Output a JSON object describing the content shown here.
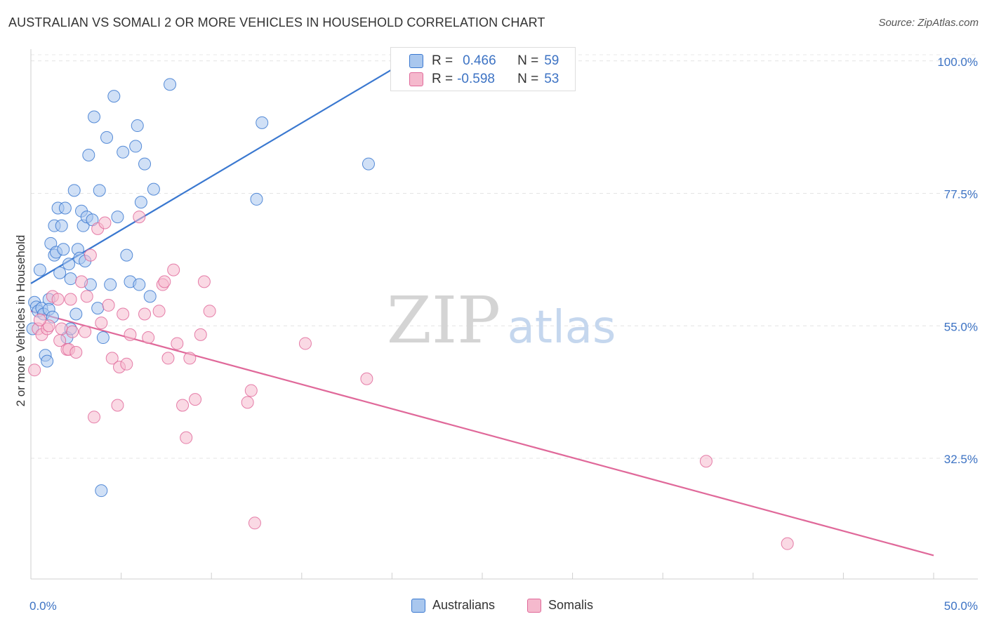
{
  "header": {
    "title": "AUSTRALIAN VS SOMALI 2 OR MORE VEHICLES IN HOUSEHOLD CORRELATION CHART",
    "source": "Source: ZipAtlas.com"
  },
  "watermark": {
    "zip": "ZIP",
    "atlas": "atlas"
  },
  "colors": {
    "blue": "#3a78d0",
    "blue_fill": "#a9c7ee",
    "pink": "#e0699a",
    "pink_fill": "#f5b9cd",
    "tick_text": "#3d73c4"
  },
  "legend": {
    "r_label": "R =",
    "n_label": "N =",
    "rows": [
      {
        "r": "0.466",
        "n": "59"
      },
      {
        "r": "-0.598",
        "n": "53"
      }
    ]
  },
  "chart_data": {
    "type": "scatter",
    "title": "AUSTRALIAN VS SOMALI 2 OR MORE VEHICLES IN HOUSEHOLD CORRELATION CHART",
    "xlabel": "",
    "ylabel": "2 or more Vehicles in Household",
    "xlim": [
      0,
      50
    ],
    "ylim": [
      12,
      102
    ],
    "x_tick_labels": [
      "0.0%",
      "50.0%"
    ],
    "y_ticks": [
      32.5,
      55.0,
      77.5,
      100.0
    ],
    "y_tick_labels": [
      "32.5%",
      "55.0%",
      "77.5%",
      "100.0%"
    ],
    "grid": true,
    "legend_position": "top-center",
    "series": [
      {
        "name": "Australians",
        "r": 0.466,
        "n": 59,
        "trend": {
          "x": [
            0.0,
            20.8
          ],
          "y": [
            62.2,
            100.0
          ]
        },
        "points": [
          [
            0.1,
            54.5
          ],
          [
            0.2,
            59.0
          ],
          [
            0.3,
            58.2
          ],
          [
            0.4,
            57.5
          ],
          [
            0.5,
            64.5
          ],
          [
            0.6,
            58.0
          ],
          [
            0.7,
            57.0
          ],
          [
            0.8,
            50.0
          ],
          [
            0.9,
            49.0
          ],
          [
            1.0,
            59.5
          ],
          [
            1.0,
            57.8
          ],
          [
            1.1,
            69.0
          ],
          [
            1.2,
            56.5
          ],
          [
            1.3,
            67.0
          ],
          [
            1.3,
            72.0
          ],
          [
            1.4,
            67.5
          ],
          [
            1.5,
            75.0
          ],
          [
            1.6,
            64.0
          ],
          [
            1.7,
            72.0
          ],
          [
            1.8,
            68.0
          ],
          [
            1.9,
            75.0
          ],
          [
            2.0,
            53.0
          ],
          [
            2.1,
            65.5
          ],
          [
            2.2,
            54.5
          ],
          [
            2.2,
            63.0
          ],
          [
            2.4,
            78.0
          ],
          [
            2.5,
            57.0
          ],
          [
            2.6,
            68.0
          ],
          [
            2.7,
            66.5
          ],
          [
            2.8,
            74.5
          ],
          [
            2.9,
            72.0
          ],
          [
            3.0,
            66.0
          ],
          [
            3.1,
            73.5
          ],
          [
            3.2,
            84.0
          ],
          [
            3.3,
            62.0
          ],
          [
            3.4,
            73.0
          ],
          [
            3.5,
            90.5
          ],
          [
            3.7,
            58.0
          ],
          [
            3.8,
            78.0
          ],
          [
            3.9,
            27.0
          ],
          [
            4.0,
            53.0
          ],
          [
            4.2,
            87.0
          ],
          [
            4.4,
            62.0
          ],
          [
            4.6,
            94.0
          ],
          [
            4.8,
            73.5
          ],
          [
            5.1,
            84.5
          ],
          [
            5.3,
            67.0
          ],
          [
            5.5,
            62.5
          ],
          [
            5.8,
            85.5
          ],
          [
            5.9,
            89.0
          ],
          [
            6.0,
            62.0
          ],
          [
            6.1,
            76.0
          ],
          [
            6.3,
            82.5
          ],
          [
            6.6,
            60.0
          ],
          [
            6.8,
            78.2
          ],
          [
            7.7,
            96.0
          ],
          [
            12.5,
            76.5
          ],
          [
            12.8,
            89.5
          ],
          [
            18.7,
            82.5
          ]
        ]
      },
      {
        "name": "Somalis",
        "r": -0.598,
        "n": 53,
        "trend": {
          "x": [
            0.0,
            50.0
          ],
          "y": [
            57.5,
            16.0
          ]
        },
        "points": [
          [
            0.2,
            47.5
          ],
          [
            0.4,
            54.5
          ],
          [
            0.6,
            53.5
          ],
          [
            0.9,
            54.5
          ],
          [
            1.0,
            55.0
          ],
          [
            1.2,
            60.0
          ],
          [
            1.5,
            59.5
          ],
          [
            1.7,
            54.5
          ],
          [
            2.0,
            51.0
          ],
          [
            2.1,
            51.0
          ],
          [
            2.2,
            59.5
          ],
          [
            2.3,
            54.0
          ],
          [
            2.5,
            50.5
          ],
          [
            2.8,
            62.5
          ],
          [
            3.0,
            54.0
          ],
          [
            3.1,
            60.0
          ],
          [
            3.3,
            67.0
          ],
          [
            3.5,
            39.5
          ],
          [
            3.7,
            71.5
          ],
          [
            3.9,
            55.5
          ],
          [
            4.1,
            72.5
          ],
          [
            4.3,
            58.5
          ],
          [
            4.5,
            49.5
          ],
          [
            4.8,
            41.5
          ],
          [
            4.9,
            48.0
          ],
          [
            5.1,
            57.0
          ],
          [
            5.3,
            48.5
          ],
          [
            5.5,
            53.5
          ],
          [
            6.0,
            73.5
          ],
          [
            6.3,
            57.0
          ],
          [
            6.5,
            53.0
          ],
          [
            7.1,
            57.5
          ],
          [
            7.3,
            62.0
          ],
          [
            7.4,
            62.5
          ],
          [
            7.6,
            49.5
          ],
          [
            7.9,
            64.5
          ],
          [
            8.1,
            52.0
          ],
          [
            8.4,
            41.5
          ],
          [
            8.6,
            36.0
          ],
          [
            8.8,
            49.5
          ],
          [
            9.1,
            42.5
          ],
          [
            9.4,
            53.5
          ],
          [
            9.6,
            62.5
          ],
          [
            9.9,
            57.5
          ],
          [
            12.0,
            42.0
          ],
          [
            12.2,
            44.0
          ],
          [
            12.4,
            21.5
          ],
          [
            15.2,
            52.0
          ],
          [
            18.6,
            46.0
          ],
          [
            37.4,
            32.0
          ],
          [
            41.9,
            18.0
          ],
          [
            0.5,
            56.0
          ],
          [
            1.6,
            52.5
          ]
        ]
      }
    ]
  }
}
